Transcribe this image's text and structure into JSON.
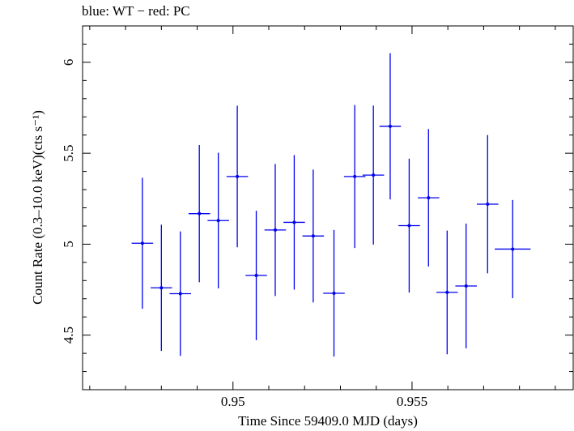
{
  "chart_data": {
    "type": "scatter",
    "title": "blue: WT − red: PC",
    "xlabel": "Time Since 59409.0 MJD (days)",
    "ylabel": "Count Rate (0.3–10.0 keV)(cts s⁻¹)",
    "xlim": [
      0.9458,
      0.9595
    ],
    "ylim": [
      4.2,
      6.2
    ],
    "xticks": [
      0.95,
      0.955
    ],
    "xtick_labels": [
      "0.95",
      "0.955"
    ],
    "yticks": [
      4.5,
      5,
      5.5,
      6
    ],
    "ytick_labels": [
      "4.5",
      "5",
      "5.5",
      "6"
    ],
    "series": [
      {
        "name": "WT",
        "color": "#0000ee",
        "points": [
          {
            "x": 0.94747,
            "xerr": 0.0003,
            "y": 5.005,
            "yerr": 0.36
          },
          {
            "x": 0.948,
            "xerr": 0.0003,
            "y": 4.76,
            "yerr": 0.347
          },
          {
            "x": 0.94853,
            "xerr": 0.0003,
            "y": 4.728,
            "yerr": 0.342
          },
          {
            "x": 0.94906,
            "xerr": 0.0003,
            "y": 5.168,
            "yerr": 0.377
          },
          {
            "x": 0.94959,
            "xerr": 0.0003,
            "y": 5.13,
            "yerr": 0.373
          },
          {
            "x": 0.95012,
            "xerr": 0.0003,
            "y": 5.372,
            "yerr": 0.389
          },
          {
            "x": 0.95065,
            "xerr": 0.0003,
            "y": 4.828,
            "yerr": 0.356
          },
          {
            "x": 0.95118,
            "xerr": 0.0003,
            "y": 5.078,
            "yerr": 0.363
          },
          {
            "x": 0.95171,
            "xerr": 0.0003,
            "y": 5.12,
            "yerr": 0.37
          },
          {
            "x": 0.95224,
            "xerr": 0.0003,
            "y": 5.045,
            "yerr": 0.365
          },
          {
            "x": 0.95282,
            "xerr": 0.0003,
            "y": 4.73,
            "yerr": 0.348
          },
          {
            "x": 0.9534,
            "xerr": 0.0003,
            "y": 5.372,
            "yerr": 0.393
          },
          {
            "x": 0.95392,
            "xerr": 0.0003,
            "y": 5.38,
            "yerr": 0.382
          },
          {
            "x": 0.95439,
            "xerr": 0.0003,
            "y": 5.648,
            "yerr": 0.402
          },
          {
            "x": 0.95492,
            "xerr": 0.0003,
            "y": 5.102,
            "yerr": 0.368
          },
          {
            "x": 0.95546,
            "xerr": 0.0003,
            "y": 5.255,
            "yerr": 0.378
          },
          {
            "x": 0.95598,
            "xerr": 0.0003,
            "y": 4.735,
            "yerr": 0.34
          },
          {
            "x": 0.95651,
            "xerr": 0.0003,
            "y": 4.77,
            "yerr": 0.343
          },
          {
            "x": 0.95711,
            "xerr": 0.0003,
            "y": 5.22,
            "yerr": 0.38
          },
          {
            "x": 0.95781,
            "xerr": 0.0005,
            "y": 4.973,
            "yerr": 0.27
          }
        ]
      }
    ]
  }
}
